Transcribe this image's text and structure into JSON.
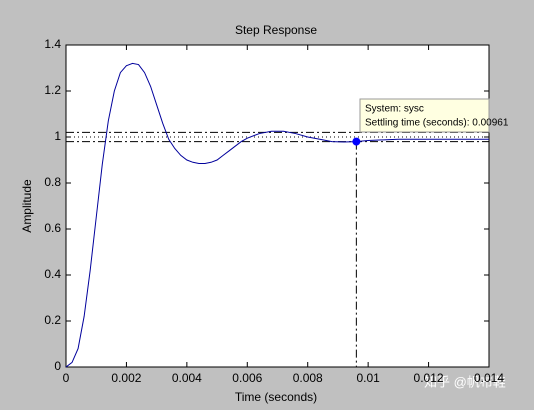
{
  "chart_data": {
    "type": "line",
    "title": "Step Response",
    "xlabel": "Time (seconds)",
    "ylabel": "Amplitude",
    "x": [
      0,
      0.0002,
      0.0004,
      0.0006,
      0.0008,
      0.001,
      0.0012,
      0.0014,
      0.0016,
      0.0018,
      0.002,
      0.0022,
      0.0024,
      0.0026,
      0.0028,
      0.003,
      0.0032,
      0.0034,
      0.0036,
      0.0038,
      0.004,
      0.0042,
      0.0044,
      0.0046,
      0.0048,
      0.005,
      0.0052,
      0.0054,
      0.0056,
      0.0058,
      0.006,
      0.0064,
      0.0068,
      0.0072,
      0.0076,
      0.008,
      0.0084,
      0.0088,
      0.0092,
      0.0096,
      0.01,
      0.011,
      0.012,
      0.013,
      0.014
    ],
    "series": [
      {
        "name": "sysc",
        "color": "#00009c",
        "values": [
          0,
          0.02,
          0.08,
          0.22,
          0.42,
          0.65,
          0.88,
          1.07,
          1.2,
          1.28,
          1.31,
          1.32,
          1.315,
          1.28,
          1.22,
          1.14,
          1.06,
          0.99,
          0.95,
          0.92,
          0.9,
          0.89,
          0.885,
          0.885,
          0.89,
          0.9,
          0.92,
          0.94,
          0.96,
          0.98,
          0.995,
          1.015,
          1.025,
          1.025,
          1.015,
          1.0,
          0.99,
          0.98,
          0.978,
          0.98,
          0.985,
          0.99,
          0.99,
          0.99,
          0.99
        ]
      }
    ],
    "xlim": [
      0,
      0.014
    ],
    "xticks": [
      0,
      0.002,
      0.004,
      0.006,
      0.008,
      0.01,
      0.012,
      0.014
    ],
    "ylim": [
      0,
      1.4
    ],
    "yticks": [
      0,
      0.2,
      0.4,
      0.6,
      0.8,
      1,
      1.2,
      1.4
    ],
    "reference_lines": [
      {
        "value": 1.02,
        "style": "dashdot"
      },
      {
        "value": 1.0,
        "style": "dotted"
      },
      {
        "value": 0.98,
        "style": "dashdot"
      }
    ],
    "datatip": {
      "system": "System: sysc",
      "settling": "Settling time (seconds): 0.00961",
      "x": 0.00961,
      "y": 0.98,
      "color": "#0000ff"
    },
    "watermark": "知乎 @帆布鞋"
  }
}
